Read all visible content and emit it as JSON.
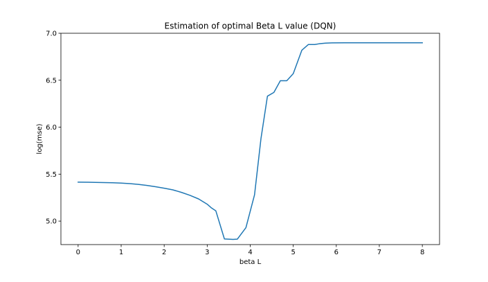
{
  "chart_data": {
    "type": "line",
    "title": "Estimation of optimal Beta L value (DQN)",
    "xlabel": "beta L",
    "ylabel": "log(mse)",
    "xlim": [
      -0.4,
      8.4
    ],
    "ylim": [
      4.75,
      7.0
    ],
    "xticks": [
      0,
      1,
      2,
      3,
      4,
      5,
      6,
      7,
      8
    ],
    "xtick_labels": [
      "0",
      "1",
      "2",
      "3",
      "4",
      "5",
      "6",
      "7",
      "8"
    ],
    "yticks": [
      5.0,
      5.5,
      6.0,
      6.5,
      7.0
    ],
    "ytick_labels": [
      "5.0",
      "5.5",
      "6.0",
      "6.5",
      "7.0"
    ],
    "grid": false,
    "line_color": "#1f77b4",
    "series": [
      {
        "x": [
          0.0,
          0.2,
          0.4,
          0.6,
          0.8,
          1.0,
          1.2,
          1.4,
          1.6,
          1.8,
          2.0,
          2.2,
          2.4,
          2.6,
          2.8,
          3.0,
          3.1,
          3.2,
          3.4,
          3.6,
          3.7,
          3.9,
          4.1,
          4.25,
          4.4,
          4.55,
          4.7,
          4.85,
          5.0,
          5.2,
          5.35,
          5.5,
          5.6,
          5.75,
          5.9,
          6.2,
          6.6,
          7.0,
          7.4,
          8.0
        ],
        "y": [
          5.415,
          5.414,
          5.412,
          5.41,
          5.408,
          5.405,
          5.399,
          5.391,
          5.38,
          5.366,
          5.35,
          5.333,
          5.306,
          5.274,
          5.236,
          5.18,
          5.14,
          5.11,
          4.81,
          4.805,
          4.808,
          4.93,
          5.28,
          5.88,
          6.33,
          6.37,
          6.495,
          6.495,
          6.57,
          6.82,
          6.88,
          6.88,
          6.888,
          6.895,
          6.898,
          6.899,
          6.899,
          6.899,
          6.899,
          6.899
        ]
      }
    ]
  }
}
